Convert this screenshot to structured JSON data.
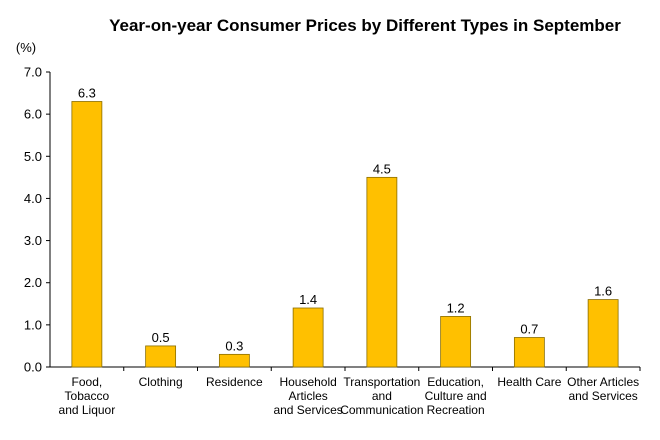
{
  "chart_data": {
    "type": "bar",
    "title": "Year-on-year Consumer Prices by Different Types in September",
    "ylabel": "(%)",
    "xlabel": "",
    "ylim": [
      0,
      7
    ],
    "yticks": [
      "0.0",
      "1.0",
      "2.0",
      "3.0",
      "4.0",
      "5.0",
      "6.0",
      "7.0"
    ],
    "categories": [
      [
        "Food,",
        "Tobacco",
        "and Liquor"
      ],
      [
        "Clothing"
      ],
      [
        "Residence"
      ],
      [
        "Household",
        "Articles",
        "and Services"
      ],
      [
        "Transportation",
        "and",
        "Communication"
      ],
      [
        "Education,",
        "Culture and",
        "Recreation"
      ],
      [
        "Health Care"
      ],
      [
        "Other Articles",
        "and Services"
      ]
    ],
    "values": [
      6.3,
      0.5,
      0.3,
      1.4,
      4.5,
      1.2,
      0.7,
      1.6
    ],
    "data_labels": [
      "6.3",
      "0.5",
      "0.3",
      "1.4",
      "4.5",
      "1.2",
      "0.7",
      "1.6"
    ],
    "bar_color": "#FFC000",
    "bar_edge_color": "#8a6d00",
    "grid": false,
    "legend": "none"
  }
}
